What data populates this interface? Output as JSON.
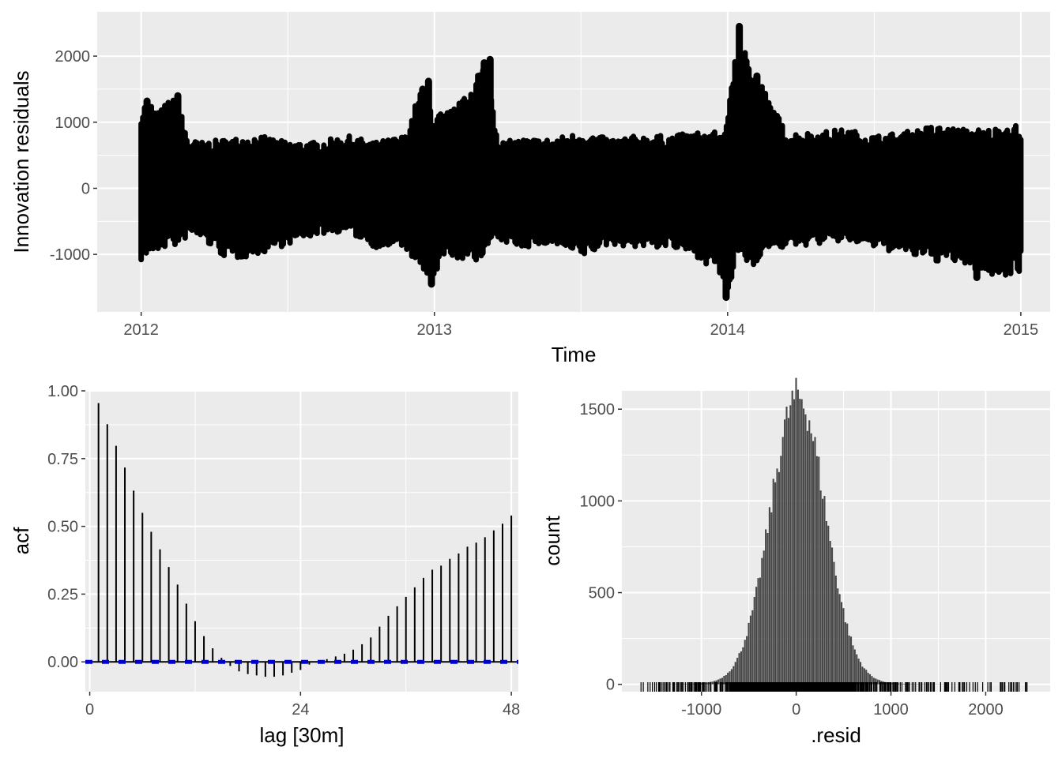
{
  "colors": {
    "panel_bg": "#ebebeb",
    "grid": "#ffffff",
    "points": "#000000",
    "bars": "#474747",
    "ci": "#0000cc"
  },
  "chart_data": [
    {
      "id": "residuals",
      "type": "scatter",
      "xlabel": "Time",
      "ylabel": "Innovation residuals",
      "xlim": [
        2011.85,
        2015.1
      ],
      "ylim": [
        -1870,
        2670
      ],
      "x_ticks": [
        2012,
        2013,
        2014,
        2015
      ],
      "x_tick_labels": [
        "2012",
        "2013",
        "2014",
        "2015"
      ],
      "y_ticks": [
        -1000,
        0,
        1000,
        2000
      ],
      "y_tick_labels": [
        "-1000",
        "0",
        "1000",
        "2000"
      ],
      "envelope": {
        "x": [
          2012.0,
          2012.03,
          2012.06,
          2012.1,
          2012.13,
          2012.16,
          2012.2,
          2012.3,
          2012.4,
          2012.5,
          2012.6,
          2012.7,
          2012.8,
          2012.9,
          2012.96,
          2013.0,
          2013.04,
          2013.1,
          2013.14,
          2013.18,
          2013.22,
          2013.3,
          2013.4,
          2013.5,
          2013.6,
          2013.7,
          2013.8,
          2013.9,
          2013.97,
          2014.0,
          2014.03,
          2014.05,
          2014.08,
          2014.12,
          2014.2,
          2014.3,
          2014.4,
          2014.5,
          2014.6,
          2014.7,
          2014.8,
          2014.9,
          2014.97,
          2015.0
        ],
        "upper": [
          1300,
          1320,
          1150,
          1400,
          1250,
          750,
          700,
          750,
          800,
          700,
          700,
          800,
          700,
          800,
          1600,
          1150,
          1150,
          1350,
          1800,
          1950,
          700,
          750,
          750,
          850,
          750,
          800,
          800,
          850,
          850,
          1000,
          2450,
          2400,
          1800,
          1550,
          850,
          850,
          900,
          800,
          850,
          950,
          900,
          900,
          1000,
          900
        ],
        "lower": [
          -1100,
          -1000,
          -950,
          -850,
          -900,
          -700,
          -750,
          -1100,
          -1000,
          -850,
          -700,
          -650,
          -900,
          -900,
          -1300,
          -1450,
          -1000,
          -1100,
          -1150,
          -900,
          -800,
          -900,
          -850,
          -1050,
          -850,
          -900,
          -900,
          -1050,
          -1300,
          -1650,
          -1100,
          -1000,
          -1250,
          -950,
          -900,
          -850,
          -800,
          -900,
          -1000,
          -1100,
          -1150,
          -1350,
          -1300,
          -1250
        ]
      },
      "spikes": [
        {
          "x": 2012.02,
          "value": 1320
        },
        {
          "x": 2012.125,
          "value": 1400
        },
        {
          "x": 2012.96,
          "value": 1500
        },
        {
          "x": 2012.98,
          "value": 1620
        },
        {
          "x": 2013.17,
          "value": 1900
        },
        {
          "x": 2013.19,
          "value": 1950
        },
        {
          "x": 2014.04,
          "value": 2450
        },
        {
          "x": 2014.07,
          "value": 1800
        },
        {
          "x": 2014.1,
          "value": 1700
        },
        {
          "x": 2013.995,
          "value": -1650
        },
        {
          "x": 2012.99,
          "value": -1450
        },
        {
          "x": 2014.85,
          "value": -1350
        }
      ]
    },
    {
      "id": "acf",
      "type": "bar",
      "xlabel": "lag [30m]",
      "ylabel": "acf",
      "xlim": [
        -0.5,
        48.8
      ],
      "ylim": [
        -0.11,
        1.0
      ],
      "x_ticks": [
        0,
        24,
        48
      ],
      "x_tick_labels": [
        "0",
        "24",
        "48"
      ],
      "y_ticks": [
        0.0,
        0.25,
        0.5,
        0.75,
        1.0
      ],
      "y_tick_labels": [
        "0.00",
        "0.25",
        "0.50",
        "0.75",
        "1.00"
      ],
      "lags": [
        1,
        2,
        3,
        4,
        5,
        6,
        7,
        8,
        9,
        10,
        11,
        12,
        13,
        14,
        15,
        16,
        17,
        18,
        19,
        20,
        21,
        22,
        23,
        24,
        25,
        26,
        27,
        28,
        29,
        30,
        31,
        32,
        33,
        34,
        35,
        36,
        37,
        38,
        39,
        40,
        41,
        42,
        43,
        44,
        45,
        46,
        47,
        48
      ],
      "values": [
        0.955,
        0.877,
        0.797,
        0.717,
        0.632,
        0.55,
        0.48,
        0.415,
        0.35,
        0.285,
        0.215,
        0.15,
        0.095,
        0.05,
        0.015,
        -0.015,
        -0.035,
        -0.045,
        -0.05,
        -0.055,
        -0.055,
        -0.05,
        -0.04,
        -0.03,
        -0.01,
        0.0,
        0.01,
        0.02,
        0.03,
        0.045,
        0.065,
        0.09,
        0.13,
        0.17,
        0.205,
        0.24,
        0.275,
        0.31,
        0.34,
        0.355,
        0.38,
        0.4,
        0.425,
        0.44,
        0.46,
        0.485,
        0.51,
        0.54
      ],
      "ci": 0.0
    },
    {
      "id": "histogram",
      "type": "bar",
      "xlabel": ".resid",
      "ylabel": "count",
      "xlim": [
        -1840,
        2680
      ],
      "ylim": [
        -40,
        1600
      ],
      "x_ticks": [
        -1000,
        0,
        1000,
        2000
      ],
      "x_tick_labels": [
        "-1000",
        "0",
        "1000",
        "2000"
      ],
      "y_ticks": [
        0,
        500,
        1000,
        1500
      ],
      "y_tick_labels": [
        "0",
        "500",
        "1000",
        "1500"
      ],
      "range": [
        -1650,
        2450
      ],
      "binwidth": 20,
      "peak_count": 1560,
      "peak_center": 20,
      "spread": 290
    }
  ]
}
